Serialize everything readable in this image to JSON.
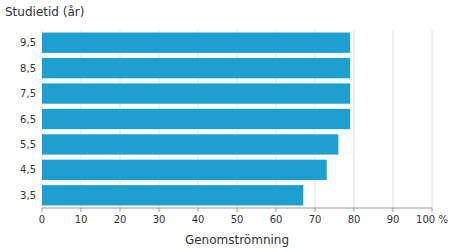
{
  "chart_data": {
    "type": "bar",
    "orientation": "horizontal",
    "categories": [
      "3,5",
      "4,5",
      "5,5",
      "6,5",
      "7,5",
      "8,5",
      "9,5"
    ],
    "values": [
      67,
      73,
      76,
      79,
      79,
      79,
      79
    ],
    "color": "#1da0d0",
    "xlabel": "Genomströmning",
    "ylabel": "Studietid (år)",
    "xlim": [
      0,
      100
    ],
    "xticks": [
      0,
      10,
      20,
      30,
      40,
      50,
      60,
      70,
      80,
      90,
      {
        "value": 100,
        "label": "100 %"
      }
    ],
    "grid": true
  }
}
